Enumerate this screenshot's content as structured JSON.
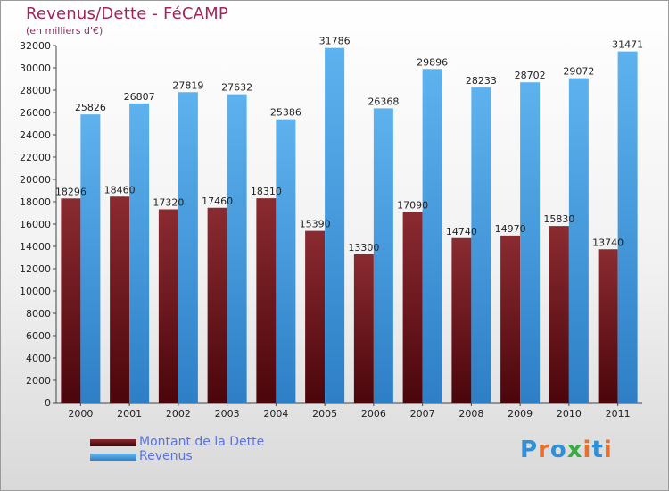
{
  "title": "Revenus/Dette - FéCAMP",
  "subtitle": "(en milliers d'€)",
  "colors": {
    "dette": "#6e1a1f",
    "revenus": "#4aa3e4",
    "title": "#a3245d",
    "legend_text": "#5b72e0"
  },
  "legend": [
    {
      "label": "Montant de la Dette",
      "color": "#6e1a1f"
    },
    {
      "label": "Revenus",
      "color": "#4aa3e4"
    }
  ],
  "logo": {
    "letters": [
      "P",
      "r",
      "o",
      "x",
      "i",
      "t",
      "i"
    ],
    "colors": [
      "#2f8fd8",
      "#e4712f",
      "#2f8fd8",
      "#3aaa45",
      "#e4712f",
      "#2f8fd8",
      "#e4712f"
    ]
  },
  "chart_data": {
    "type": "bar",
    "categories": [
      "2000",
      "2001",
      "2002",
      "2003",
      "2004",
      "2005",
      "2006",
      "2007",
      "2008",
      "2009",
      "2010",
      "2011"
    ],
    "series": [
      {
        "name": "Montant de la Dette",
        "values": [
          18296,
          18460,
          17320,
          17460,
          18310,
          15390,
          13300,
          17090,
          14740,
          14970,
          15830,
          13740
        ],
        "labels": [
          "18296",
          "18460",
          "17320",
          "17460",
          "18310",
          "15390",
          "13300",
          "17090",
          "14740",
          "14970",
          "15830",
          "13740"
        ]
      },
      {
        "name": "Revenus",
        "values": [
          25826,
          26807,
          27819,
          27632,
          25386,
          31786,
          26368,
          29896,
          28233,
          28702,
          29072,
          31471
        ],
        "labels": [
          "25826",
          "26807",
          "27819",
          "27632",
          "25386",
          "31786",
          "26368",
          "29896",
          "28233",
          "28702",
          "29072",
          "31471"
        ]
      }
    ],
    "ylim": [
      0,
      32000
    ],
    "yticks": [
      0,
      2000,
      4000,
      6000,
      8000,
      10000,
      12000,
      14000,
      16000,
      18000,
      20000,
      22000,
      24000,
      26000,
      28000,
      30000,
      32000
    ],
    "grid": false,
    "legend_position": "bottom-left"
  }
}
